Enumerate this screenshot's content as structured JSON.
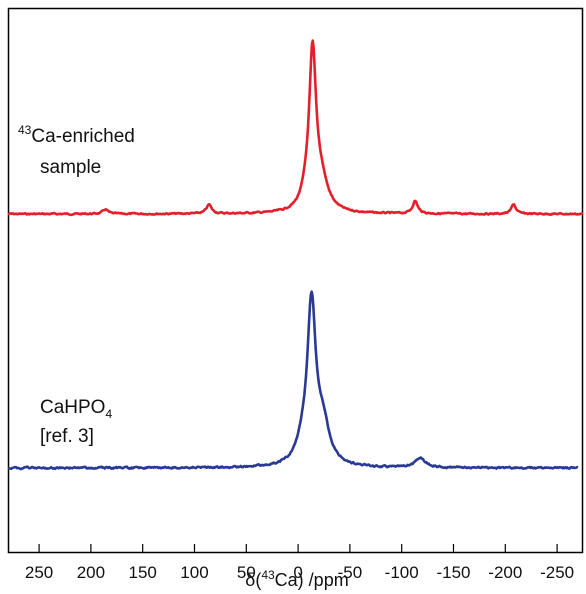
{
  "chart_data": {
    "type": "line",
    "title": "",
    "xlabel": "δ(43Ca) /ppm",
    "xlabel_parts": {
      "pre": "δ(",
      "sup": "43",
      "post": "Ca) /ppm"
    },
    "ylabel": "",
    "xlim": [
      280,
      -275
    ],
    "x_reversed": true,
    "ticks": [
      250,
      200,
      150,
      100,
      50,
      0,
      -50,
      -100,
      -150,
      -200,
      -250
    ],
    "tick_labels": [
      "250",
      "200",
      "150",
      "100",
      "50",
      "0",
      "-50",
      "-100",
      "-150",
      "-200",
      "-250"
    ],
    "grid": false,
    "legend": "none",
    "series": [
      {
        "name": "43Ca-enriched sample",
        "label_lines": [
          {
            "sup": "43",
            "text": "Ca-enriched"
          },
          {
            "text": "sample"
          }
        ],
        "color": "#e41f2b",
        "baseline": 0.0,
        "peaks": [
          {
            "center": -14,
            "height": 8.5,
            "width": 4.0
          },
          {
            "center": -22,
            "height": 1.6,
            "width": 8.0
          },
          {
            "center": -8,
            "height": 0.6,
            "width": 6.0
          },
          {
            "center": 86,
            "height": 0.5,
            "width": 3.0
          },
          {
            "center": 186,
            "height": 0.25,
            "width": 3.0
          },
          {
            "center": -113,
            "height": 0.7,
            "width": 3.0
          },
          {
            "center": -208,
            "height": 0.55,
            "width": 2.5
          }
        ]
      },
      {
        "name": "CaHPO4 [ref. 3]",
        "label_lines": [
          {
            "text": "CaHPO",
            "sub": "4"
          },
          {
            "text": "[ref. 3]"
          }
        ],
        "color": "#2a3a94",
        "baseline": 0.0,
        "peaks": [
          {
            "center": -13,
            "height": 10.2,
            "width": 5.0
          },
          {
            "center": -24,
            "height": 2.4,
            "width": 7.5
          },
          {
            "center": -4,
            "height": 1.0,
            "width": 7.0
          },
          {
            "center": -118,
            "height": 0.6,
            "width": 6.0
          }
        ]
      }
    ]
  }
}
